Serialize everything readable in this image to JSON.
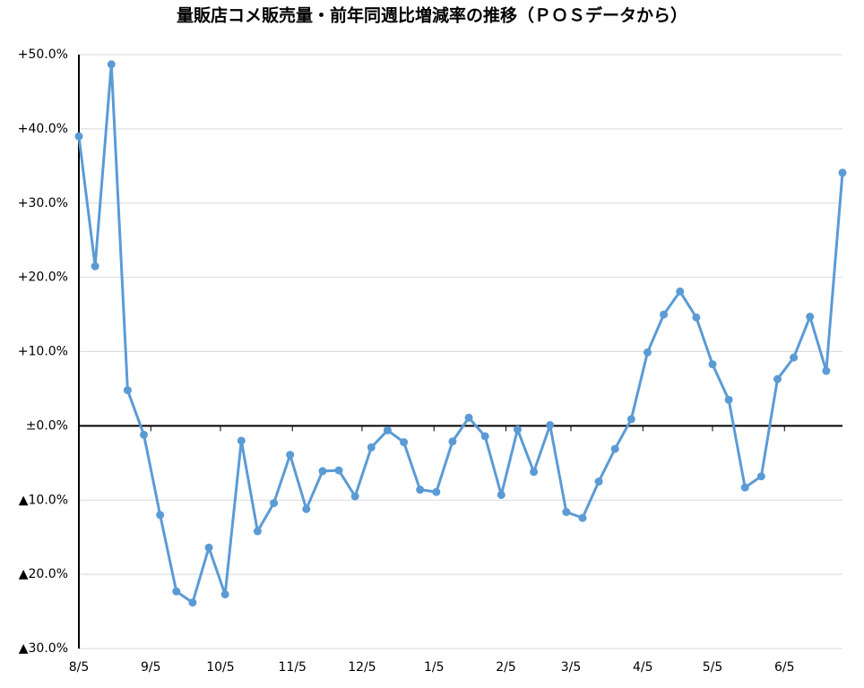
{
  "chart_data": {
    "type": "line",
    "title": "量販店コメ販売量・前年同週比増減率の推移（ＰＯＳデータから）",
    "x": [
      0,
      7,
      14,
      21,
      28,
      35,
      42,
      49,
      56,
      63,
      70,
      77,
      84,
      91,
      98,
      105,
      112,
      119,
      126,
      133,
      140,
      147,
      154,
      161,
      168,
      175,
      182,
      189,
      196,
      203,
      210,
      217,
      224,
      231,
      238,
      245,
      252,
      259,
      266,
      273,
      280,
      287,
      294,
      301,
      308,
      315,
      322,
      329
    ],
    "series": [
      {
        "name": "前年同週比増減率",
        "color": "#5b9bd5",
        "values": [
          39,
          21.5,
          48.7,
          4.8,
          -1.2,
          -12,
          -22.3,
          -23.8,
          -16.4,
          -22.7,
          -2,
          -14.2,
          -10.4,
          -3.9,
          -11.2,
          -6.1,
          -6,
          -9.5,
          -2.9,
          -0.6,
          -2.2,
          -8.6,
          -8.9,
          -2.1,
          1.1,
          -1.4,
          -9.3,
          -0.5,
          -6.2,
          0.1,
          -11.6,
          -12.4,
          -7.5,
          -3.1,
          0.9,
          9.9,
          15,
          18.1,
          14.6,
          8.3,
          3.5,
          -8.3,
          -6.8,
          6.3,
          9.2,
          14.7,
          7.4,
          34.1
        ]
      }
    ],
    "xlim": [
      0,
      329
    ],
    "xticks": [
      {
        "value": 0,
        "label": "8/5"
      },
      {
        "value": 31,
        "label": "9/5"
      },
      {
        "value": 61,
        "label": "10/5"
      },
      {
        "value": 92,
        "label": "11/5"
      },
      {
        "value": 122,
        "label": "12/5"
      },
      {
        "value": 153,
        "label": "1/5"
      },
      {
        "value": 184,
        "label": "2/5"
      },
      {
        "value": 212,
        "label": "3/5"
      },
      {
        "value": 243,
        "label": "4/5"
      },
      {
        "value": 273,
        "label": "5/5"
      },
      {
        "value": 304,
        "label": "6/5"
      }
    ],
    "ylim": [
      -30,
      50
    ],
    "yticks": [
      {
        "value": 50,
        "label": "+50.0%"
      },
      {
        "value": 40,
        "label": "+40.0%"
      },
      {
        "value": 30,
        "label": "+30.0%"
      },
      {
        "value": 20,
        "label": "+20.0%"
      },
      {
        "value": 10,
        "label": "+10.0%"
      },
      {
        "value": 0,
        "label": "±0.0%"
      },
      {
        "value": -10,
        "label": "▲10.0%"
      },
      {
        "value": -20,
        "label": "▲20.0%"
      },
      {
        "value": -30,
        "label": "▲30.0%"
      }
    ],
    "grid": true
  }
}
